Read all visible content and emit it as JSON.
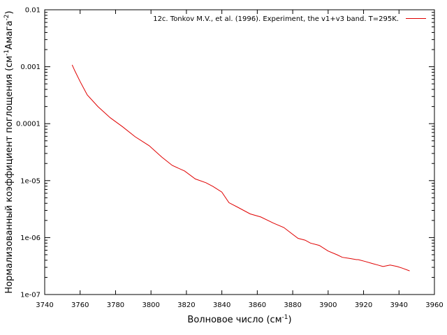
{
  "chart_data": {
    "type": "line",
    "xlabel": "Волновое число (см",
    "xlabel_sup": "-1",
    "xlabel_end": ")",
    "ylabel": "Нормализованный коэффициент поглощения (см",
    "ylabel_sup1": "-1",
    "ylabel_mid": "Амага",
    "ylabel_sup2": "-2",
    "ylabel_end": ")",
    "x_scale": "linear",
    "y_scale": "log",
    "xlim": [
      3740,
      3960
    ],
    "ylim": [
      1e-07,
      0.01
    ],
    "x_ticks": [
      3740,
      3760,
      3780,
      3800,
      3820,
      3840,
      3860,
      3880,
      3900,
      3920,
      3940,
      3960
    ],
    "x_tick_labels": [
      "3740",
      "3760",
      "3780",
      "3800",
      "3820",
      "3840",
      "3860",
      "3880",
      "3900",
      "3920",
      "3940",
      "3960"
    ],
    "y_ticks": [
      1e-07,
      1e-06,
      1e-05,
      0.0001,
      0.001,
      0.01
    ],
    "y_tick_labels": [
      "1e-07",
      "1e-06",
      "1e-05",
      "0.0001",
      "0.001",
      "0.01"
    ],
    "grid": false,
    "legend_position": "top-right",
    "series": [
      {
        "name": "12c. Tonkov M.V., et al. (1996). Experiment, the v1+v3 band. T=295K.",
        "color": "#e00000",
        "x": [
          3755.5,
          3757,
          3760,
          3764,
          3770,
          3777,
          3784,
          3791,
          3799,
          3806,
          3812,
          3819,
          3825,
          3831,
          3835,
          3840,
          3844,
          3849,
          3856,
          3862,
          3869,
          3875,
          3879,
          3883,
          3887,
          3890,
          3895,
          3900,
          3905,
          3908,
          3912,
          3916,
          3917,
          3921,
          3925,
          3928,
          3931,
          3935,
          3939,
          3942,
          3946
        ],
        "y": [
          0.00108,
          0.00085,
          0.00055,
          0.00032,
          0.0002,
          0.000127,
          8.8e-05,
          5.9e-05,
          4.1e-05,
          2.6e-05,
          1.85e-05,
          1.47e-05,
          1.07e-05,
          9.2e-06,
          7.9e-06,
          6.3e-06,
          4.1e-06,
          3.4e-06,
          2.6e-06,
          2.3e-06,
          1.8e-06,
          1.5e-06,
          1.2e-06,
          9.7e-07,
          9e-07,
          8e-07,
          7.3e-07,
          5.8e-07,
          5e-07,
          4.5e-07,
          4.3e-07,
          4.1e-07,
          4.1e-07,
          3.8e-07,
          3.5e-07,
          3.3e-07,
          3.1e-07,
          3.3e-07,
          3.1e-07,
          2.9e-07,
          2.6e-07
        ]
      }
    ]
  }
}
